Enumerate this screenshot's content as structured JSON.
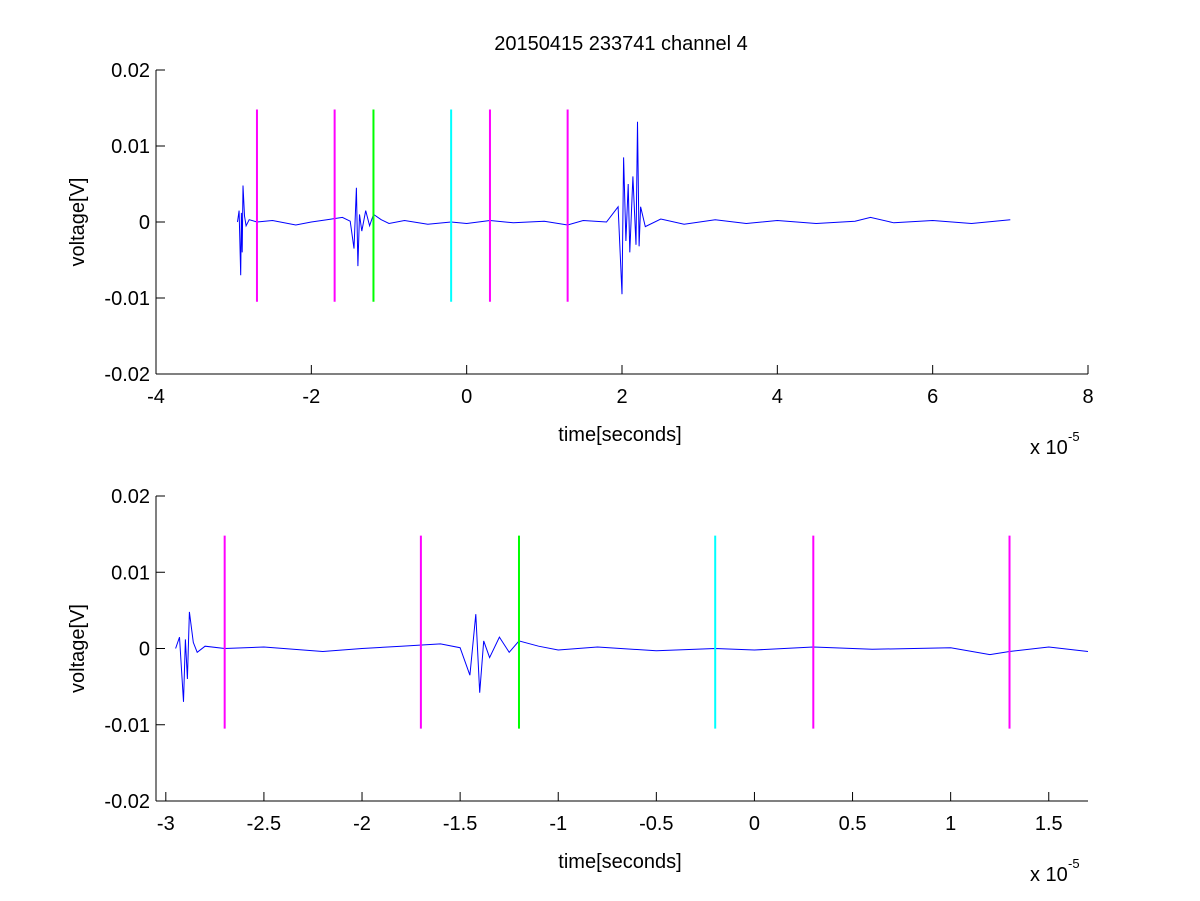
{
  "figure": {
    "title": "20150415 233741 channel 4"
  },
  "chart_data": [
    {
      "type": "line",
      "title": "20150415 233741 channel 4",
      "xlabel": "time[seconds]",
      "ylabel": "voltage[V]",
      "x_multiplier": "x 10",
      "x_multiplier_exp": "-5",
      "xlim": [
        -4,
        8
      ],
      "ylim": [
        -0.02,
        0.02
      ],
      "xticks": [
        -4,
        -2,
        0,
        2,
        4,
        6,
        8
      ],
      "xtick_labels": [
        "-4",
        "-2",
        "0",
        "2",
        "4",
        "6",
        "8"
      ],
      "yticks": [
        -0.02,
        -0.01,
        0,
        0.01,
        0.02
      ],
      "ytick_labels": [
        "-0.02",
        "-0.01",
        "0",
        "0.01",
        "0.02"
      ],
      "grid": false,
      "series": [
        {
          "color": "#0000ff",
          "x": [
            -2.95,
            -2.93,
            -2.91,
            -2.9,
            -2.89,
            -2.88,
            -2.86,
            -2.84,
            -2.8,
            -2.7,
            -2.5,
            -2.2,
            -2.0,
            -1.8,
            -1.6,
            -1.5,
            -1.45,
            -1.42,
            -1.4,
            -1.38,
            -1.35,
            -1.3,
            -1.25,
            -1.2,
            -1.1,
            -1.0,
            -0.8,
            -0.5,
            -0.2,
            0.0,
            0.3,
            0.6,
            1.0,
            1.3,
            1.5,
            1.8,
            1.95,
            2.0,
            2.02,
            2.05,
            2.08,
            2.1,
            2.14,
            2.18,
            2.2,
            2.22,
            2.24,
            2.3,
            2.5,
            2.8,
            3.2,
            3.6,
            4.0,
            4.5,
            5.0,
            5.2,
            5.5,
            6.0,
            6.5,
            7.0
          ],
          "y": [
            0.0,
            0.0015,
            -0.007,
            0.0012,
            -0.004,
            0.0048,
            0.0008,
            -0.0005,
            0.0003,
            0.0,
            0.0002,
            -0.0004,
            0.0,
            0.0003,
            0.0006,
            0.0001,
            -0.0035,
            0.0045,
            -0.0058,
            0.001,
            -0.0012,
            0.0015,
            -0.0005,
            0.001,
            0.0003,
            -0.0002,
            0.0002,
            -0.0003,
            0.0,
            -0.0002,
            0.0002,
            -0.0001,
            0.0001,
            -0.0004,
            0.0002,
            0.0,
            0.002,
            -0.0095,
            0.0085,
            -0.0025,
            0.005,
            -0.004,
            0.006,
            -0.003,
            0.0132,
            -0.0032,
            0.002,
            -0.0006,
            0.0004,
            -0.0003,
            0.0003,
            -0.0002,
            0.0002,
            -0.0002,
            0.0001,
            0.0006,
            -0.0001,
            0.0002,
            -0.0002,
            0.0003
          ]
        }
      ],
      "vlines": [
        {
          "x": -2.7,
          "color": "#ff00ff",
          "ymin": -0.0105,
          "ymax": 0.0148
        },
        {
          "x": -1.7,
          "color": "#ff00ff",
          "ymin": -0.0105,
          "ymax": 0.0148
        },
        {
          "x": -1.2,
          "color": "#00ff00",
          "ymin": -0.0105,
          "ymax": 0.0148
        },
        {
          "x": -0.2,
          "color": "#00ffff",
          "ymin": -0.0105,
          "ymax": 0.0148
        },
        {
          "x": 0.3,
          "color": "#ff00ff",
          "ymin": -0.0105,
          "ymax": 0.0148
        },
        {
          "x": 1.3,
          "color": "#ff00ff",
          "ymin": -0.0105,
          "ymax": 0.0148
        }
      ]
    },
    {
      "type": "line",
      "title": "",
      "xlabel": "time[seconds]",
      "ylabel": "voltage[V]",
      "x_multiplier": "x 10",
      "x_multiplier_exp": "-5",
      "xlim": [
        -3.05,
        1.7
      ],
      "ylim": [
        -0.02,
        0.02
      ],
      "xticks": [
        -3,
        -2.5,
        -2,
        -1.5,
        -1,
        -0.5,
        0,
        0.5,
        1,
        1.5
      ],
      "xtick_labels": [
        "-3",
        "-2.5",
        "-2",
        "-1.5",
        "-1",
        "-0.5",
        "0",
        "0.5",
        "1",
        "1.5"
      ],
      "yticks": [
        -0.02,
        -0.01,
        0,
        0.01,
        0.02
      ],
      "ytick_labels": [
        "-0.02",
        "-0.01",
        "0",
        "0.01",
        "0.02"
      ],
      "grid": false,
      "series": [
        {
          "color": "#0000ff",
          "x": [
            -2.95,
            -2.93,
            -2.91,
            -2.9,
            -2.89,
            -2.88,
            -2.86,
            -2.84,
            -2.8,
            -2.7,
            -2.5,
            -2.2,
            -2.0,
            -1.8,
            -1.6,
            -1.5,
            -1.45,
            -1.42,
            -1.4,
            -1.38,
            -1.35,
            -1.3,
            -1.25,
            -1.2,
            -1.1,
            -1.0,
            -0.8,
            -0.5,
            -0.2,
            0.0,
            0.3,
            0.6,
            1.0,
            1.2,
            1.3,
            1.5,
            1.7
          ],
          "y": [
            0.0,
            0.0015,
            -0.007,
            0.0012,
            -0.004,
            0.0048,
            0.0008,
            -0.0005,
            0.0003,
            0.0,
            0.0002,
            -0.0004,
            0.0,
            0.0003,
            0.0006,
            0.0001,
            -0.0035,
            0.0045,
            -0.0058,
            0.001,
            -0.0012,
            0.0015,
            -0.0005,
            0.001,
            0.0003,
            -0.0002,
            0.0002,
            -0.0003,
            0.0,
            -0.0002,
            0.0002,
            -0.0001,
            0.0001,
            -0.0008,
            -0.0004,
            0.0002,
            -0.0004
          ]
        }
      ],
      "vlines": [
        {
          "x": -2.7,
          "color": "#ff00ff",
          "ymin": -0.0105,
          "ymax": 0.0148
        },
        {
          "x": -1.7,
          "color": "#ff00ff",
          "ymin": -0.0105,
          "ymax": 0.0148
        },
        {
          "x": -1.2,
          "color": "#00ff00",
          "ymin": -0.0105,
          "ymax": 0.0148
        },
        {
          "x": -0.2,
          "color": "#00ffff",
          "ymin": -0.0105,
          "ymax": 0.0148
        },
        {
          "x": 0.3,
          "color": "#ff00ff",
          "ymin": -0.0105,
          "ymax": 0.0148
        },
        {
          "x": 1.3,
          "color": "#ff00ff",
          "ymin": -0.0105,
          "ymax": 0.0148
        }
      ]
    }
  ]
}
